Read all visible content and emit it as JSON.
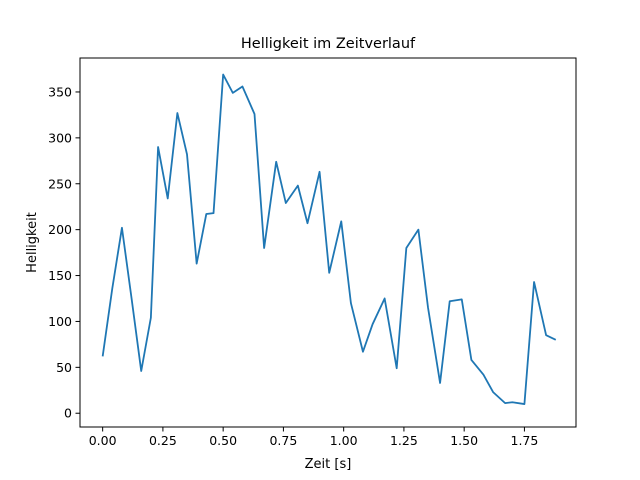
{
  "chart_data": {
    "type": "line",
    "title": "Helligkeit im Zeitverlauf",
    "xlabel": "Zeit [s]",
    "ylabel": "Helligkeit",
    "xlim": [
      -0.094,
      1.964
    ],
    "ylim": [
      -15,
      387
    ],
    "xticks": [
      0.0,
      0.25,
      0.5,
      0.75,
      1.0,
      1.25,
      1.5,
      1.75
    ],
    "xtick_labels": [
      "0.00",
      "0.25",
      "0.50",
      "0.75",
      "1.00",
      "1.25",
      "1.50",
      "1.75"
    ],
    "yticks": [
      0,
      50,
      100,
      150,
      200,
      250,
      300,
      350
    ],
    "ytick_labels": [
      "0",
      "50",
      "100",
      "150",
      "200",
      "250",
      "300",
      "350"
    ],
    "grid": false,
    "series": [
      {
        "color": "#1f77b4",
        "x": [
          0.0,
          0.04,
          0.08,
          0.12,
          0.16,
          0.2,
          0.23,
          0.27,
          0.31,
          0.35,
          0.39,
          0.43,
          0.46,
          0.5,
          0.54,
          0.58,
          0.63,
          0.67,
          0.72,
          0.76,
          0.81,
          0.85,
          0.9,
          0.94,
          0.99,
          1.03,
          1.08,
          1.12,
          1.17,
          1.22,
          1.26,
          1.31,
          1.35,
          1.4,
          1.44,
          1.49,
          1.53,
          1.58,
          1.62,
          1.67,
          1.7,
          1.75,
          1.79,
          1.84,
          1.88
        ],
        "y": [
          62,
          136,
          202,
          125,
          46,
          104,
          290,
          234,
          327,
          282,
          163,
          217,
          218,
          369,
          349,
          356,
          326,
          180,
          274,
          229,
          248,
          207,
          263,
          153,
          209,
          120,
          67,
          97,
          125,
          49,
          180,
          200,
          115,
          33,
          122,
          124,
          58,
          42,
          23,
          11,
          12,
          10,
          143,
          85,
          80
        ]
      }
    ]
  }
}
